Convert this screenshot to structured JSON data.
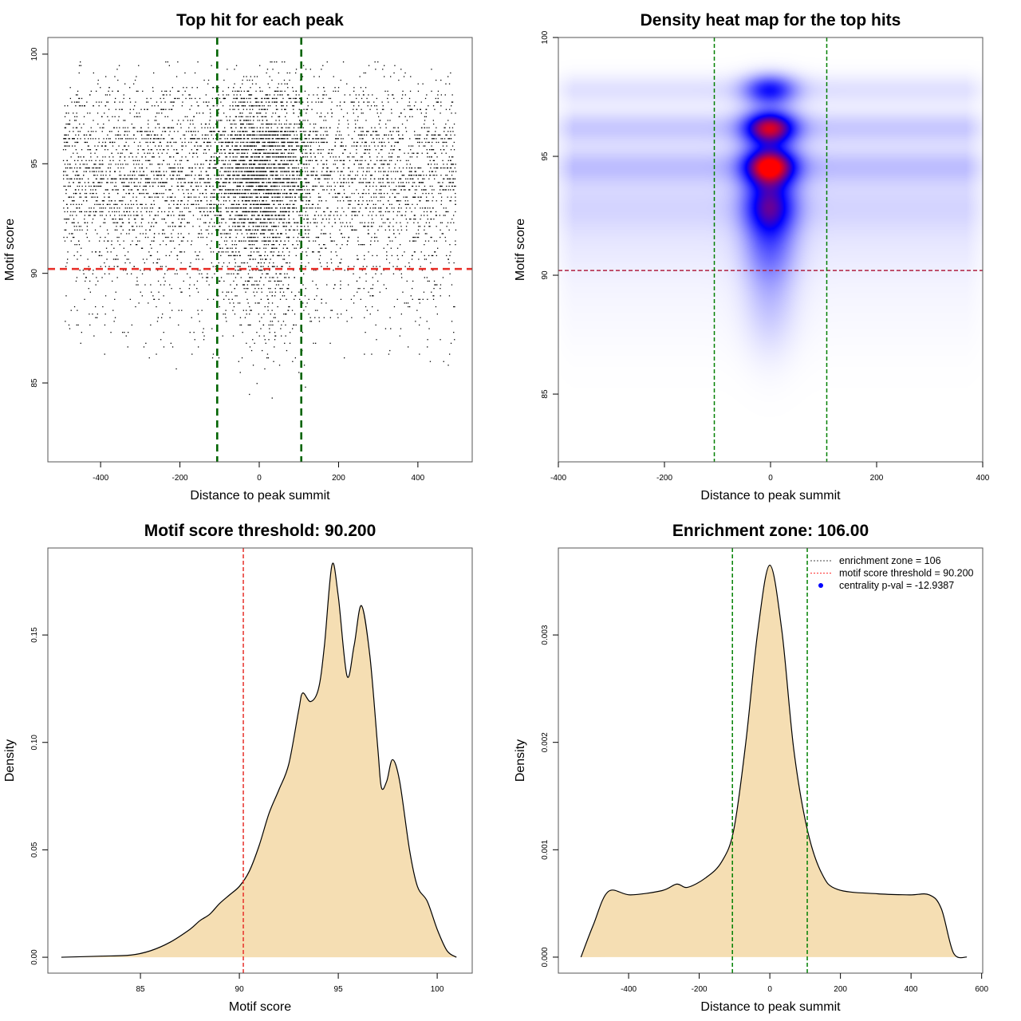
{
  "chart_data": [
    {
      "type": "scatter",
      "title": "Top hit for each peak",
      "xlabel": "Distance to peak summit",
      "ylabel": "Motif score",
      "xlim": [
        -533,
        537
      ],
      "ylim": [
        81.4,
        100.76
      ],
      "xticks": [
        -400,
        -200,
        0,
        200,
        400
      ],
      "xticklabels": [
        "-400",
        "-200",
        "0",
        "200",
        "400"
      ],
      "yticks": [
        85,
        90,
        95,
        100
      ],
      "yticklabels": [
        "85",
        "90",
        "95",
        "100"
      ],
      "hlines": [
        {
          "y": 90.2,
          "color": "#e8302a"
        }
      ],
      "vlines": [
        {
          "x": -106,
          "color": "#006400"
        },
        {
          "x": 106,
          "color": "#006400"
        }
      ],
      "points": {
        "n": 7000,
        "x_range": [
          -495,
          495
        ],
        "central_fraction": 0.3,
        "central_sd": 60,
        "y_modes": [
          94.6,
          96.2,
          93.2,
          97.8,
          92.0,
          89.0,
          99.0
        ],
        "y_sds": [
          0.6,
          0.5,
          0.8,
          0.4,
          1.2,
          1.6,
          0.6
        ],
        "y_weights": [
          0.25,
          0.2,
          0.2,
          0.08,
          0.15,
          0.1,
          0.02
        ]
      }
    },
    {
      "type": "heatmap",
      "title": "Density heat map for the top hits",
      "xlabel": "Distance to peak summit",
      "ylabel": "Motif score",
      "xlim": [
        -400.0,
        400.0
      ],
      "xlim_full": [
        -500,
        500
      ],
      "ylim": [
        82.15,
        100.0
      ],
      "xticks": [
        -400,
        -200,
        0,
        200,
        400
      ],
      "xticklabels": [
        "-400",
        "-200",
        "0",
        "200",
        "400"
      ],
      "yticks": [
        85,
        90,
        95,
        100
      ],
      "yticklabels": [
        "85",
        "90",
        "95",
        "100"
      ],
      "hlines": [
        {
          "y": 90.2,
          "color": "#b02040"
        }
      ],
      "vlines": [
        {
          "x": -106,
          "color": "#008000"
        },
        {
          "x": 106,
          "color": "#008000"
        }
      ],
      "colors": [
        "#ffffff",
        "#0000ff",
        "#ff0000"
      ]
    },
    {
      "type": "area",
      "title": "Motif score threshold: 90.200",
      "xlabel": "Motif score",
      "ylabel": "Density",
      "xlim": [
        80.32,
        101.77
      ],
      "ylim": [
        -0.0074,
        0.1905
      ],
      "xticks": [
        85,
        90,
        95,
        100
      ],
      "xticklabels": [
        "85",
        "90",
        "95",
        "100"
      ],
      "yticks": [
        0,
        0.05,
        0.1,
        0.15
      ],
      "yticklabels": [
        "0.00",
        "0.05",
        "0.10",
        "0.15"
      ],
      "vlines": [
        {
          "x": 90.2,
          "color": "#e8302a"
        }
      ],
      "fill": "#f5deb3",
      "x": [
        81,
        83,
        84.5,
        85.5,
        86.5,
        87.5,
        88,
        88.5,
        89,
        89.5,
        90,
        90.5,
        91,
        91.5,
        92,
        92.5,
        93,
        93.2,
        93.6,
        94,
        94.3,
        94.68,
        95,
        95.44,
        95.8,
        96.17,
        96.6,
        97,
        97.18,
        97.45,
        97.74,
        98.1,
        98.6,
        99,
        99.5,
        100,
        100.5,
        100.97
      ],
      "y": [
        0,
        0.0005,
        0.001,
        0.003,
        0.007,
        0.013,
        0.017,
        0.02,
        0.025,
        0.029,
        0.033,
        0.04,
        0.052,
        0.067,
        0.078,
        0.09,
        0.115,
        0.123,
        0.119,
        0.125,
        0.145,
        0.1826,
        0.168,
        0.131,
        0.145,
        0.1637,
        0.14,
        0.097,
        0.079,
        0.082,
        0.092,
        0.082,
        0.05,
        0.033,
        0.026,
        0.013,
        0.003,
        0
      ]
    },
    {
      "type": "area",
      "title": "Enrichment zone: 106.00",
      "xlabel": "Distance to peak summit",
      "ylabel": "Density",
      "xlim": [
        -599,
        603
      ],
      "ylim": [
        -0.000149,
        0.00381
      ],
      "xticks": [
        -400,
        -200,
        0,
        200,
        400,
        600
      ],
      "xticklabels": [
        "-400",
        "-200",
        "0",
        "200",
        "400",
        "600"
      ],
      "yticks": [
        0,
        0.001,
        0.002,
        0.003
      ],
      "yticklabels": [
        "0.000",
        "0.001",
        "0.002",
        "0.003"
      ],
      "vlines": [
        {
          "x": -106,
          "color": "#008000"
        },
        {
          "x": 106,
          "color": "#008000"
        }
      ],
      "fill": "#f5deb3",
      "x": [
        -535,
        -500,
        -458,
        -395,
        -305,
        -264,
        -233,
        -181,
        -136,
        -102,
        -68,
        -34,
        0,
        34,
        68,
        106,
        147,
        192,
        305,
        395,
        452,
        486,
        520,
        558
      ],
      "y": [
        0,
        0.0003,
        0.00061,
        0.00058,
        0.00062,
        0.00068,
        0.00065,
        0.00074,
        0.00089,
        0.00119,
        0.002,
        0.00304,
        0.00365,
        0.00304,
        0.00193,
        0.00119,
        0.00078,
        0.00063,
        0.00059,
        0.00058,
        0.00058,
        0.00045,
        4e-05,
        0
      ],
      "legend": {
        "placement": "top-right",
        "entries": [
          {
            "label": "enrichment zone = 106",
            "color": "#444444",
            "symbol": "dotted-line"
          },
          {
            "label": "motif score threshold = 90.200",
            "color": "#ff3030",
            "symbol": "dotted-line"
          },
          {
            "label": "centrality p-val = -12.9387",
            "color": "#0000ff",
            "symbol": "point"
          }
        ]
      }
    }
  ]
}
